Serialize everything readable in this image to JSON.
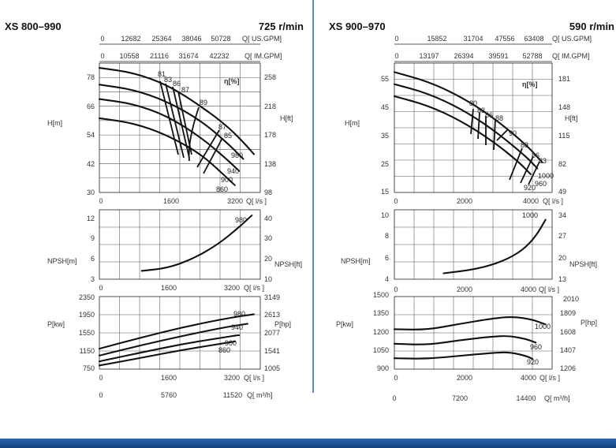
{
  "charts": [
    {
      "model": "XS 800–990",
      "speed": "725 r/min",
      "flow_unit_ls": "Q[ l/s ]",
      "flow_unit_usgpm": "Q[ US.GPM]",
      "flow_unit_imgpm": "Q[ IM.GPM]",
      "flow_unit_m3h": "Q[ m³/h]",
      "head_label_m": "H[m]",
      "head_label_ft": "H[ft]",
      "eff_label": "η[%]",
      "npsh_label_m": "NPSH[m]",
      "npsh_label_ft": "NPSH[ft]",
      "power_label_kw": "P[kw]",
      "power_label_hp": "P[hp]",
      "usgpm_ticks": [
        "0",
        "12682",
        "25364",
        "38046",
        "50728"
      ],
      "imgpm_ticks": [
        "0",
        "10558",
        "21116",
        "31674",
        "42232"
      ],
      "q_ticks": [
        "0",
        "1600",
        "3200"
      ],
      "m3h_ticks": [
        "0",
        "5760",
        "11520"
      ],
      "head_ticks_m": [
        "78",
        "66",
        "54",
        "42",
        "30"
      ],
      "head_ticks_ft": [
        "258",
        "218",
        "178",
        "138",
        "98"
      ],
      "npsh_ticks_m": [
        "12",
        "9",
        "6",
        "3"
      ],
      "npsh_ticks_ft": [
        "40",
        "30",
        "20",
        "10"
      ],
      "power_ticks_kw": [
        "2350",
        "1950",
        "1550",
        "1150",
        "750"
      ],
      "power_ticks_hp": [
        "3149",
        "2613",
        "2077",
        "1541",
        "1005"
      ],
      "eff_values": [
        "81",
        "83",
        "86",
        "87",
        "89",
        "87",
        "85"
      ],
      "head_curves": [
        "980",
        "940",
        "900",
        "860"
      ],
      "npsh_curves": [
        "980"
      ],
      "power_curves": [
        "980",
        "940",
        "900",
        "860"
      ]
    },
    {
      "model": "XS 900–970",
      "speed": "590 r/min",
      "flow_unit_ls": "Q[ l/s ]",
      "flow_unit_usgpm": "Q[ US.GPM]",
      "flow_unit_imgpm": "Q[ IM.GPM]",
      "flow_unit_m3h": "Q[ m³/h]",
      "head_label_m": "H[m]",
      "head_label_ft": "H[ft]",
      "eff_label": "η[%]",
      "npsh_label_m": "NPSH[m]",
      "npsh_label_ft": "NPSH[ft]",
      "power_label_kw": "P[kw]",
      "power_label_hp": "P[hp]",
      "usgpm_ticks": [
        "0",
        "15852",
        "31704",
        "47556",
        "63408"
      ],
      "imgpm_ticks": [
        "0",
        "13197",
        "26394",
        "39591",
        "52788"
      ],
      "q_ticks": [
        "0",
        "2000",
        "4000"
      ],
      "m3h_ticks": [
        "0",
        "7200",
        "14400"
      ],
      "head_ticks_m": [
        "55",
        "45",
        "35",
        "25",
        "15"
      ],
      "head_ticks_ft": [
        "181",
        "148",
        "115",
        "82",
        "49"
      ],
      "npsh_ticks_m": [
        "10",
        "8",
        "6",
        "4"
      ],
      "npsh_ticks_ft": [
        "34",
        "27",
        "20",
        "13"
      ],
      "power_ticks_kw": [
        "1500",
        "1350",
        "1200",
        "1050",
        "900"
      ],
      "power_ticks_hp": [
        "2010",
        "1809",
        "1608",
        "1407",
        "1206"
      ],
      "eff_values": [
        "80",
        "83",
        "86",
        "88",
        "90",
        "88",
        "86",
        "83"
      ],
      "head_curves": [
        "1000",
        "960",
        "920"
      ],
      "npsh_curves": [
        "1000"
      ],
      "power_curves": [
        "1000",
        "960",
        "920"
      ]
    }
  ],
  "chart_data": [
    {
      "type": "line",
      "title": "XS 800–990 — 725 r/min — Head",
      "xlabel": "Q [l/s]",
      "ylabel": "H [m]",
      "xlim": [
        0,
        3800
      ],
      "ylim": [
        30,
        84
      ],
      "series": [
        {
          "name": "980",
          "x": [
            0,
            800,
            1600,
            2400,
            3000,
            3400,
            3650
          ],
          "y": [
            82,
            80,
            75,
            66,
            58,
            51,
            46
          ]
        },
        {
          "name": "940",
          "x": [
            0,
            800,
            1600,
            2400,
            3000,
            3400
          ],
          "y": [
            75,
            73,
            68,
            60,
            51,
            44
          ]
        },
        {
          "name": "900",
          "x": [
            0,
            800,
            1600,
            2400,
            3000,
            3300
          ],
          "y": [
            69,
            67,
            62,
            53,
            44,
            39
          ]
        },
        {
          "name": "860",
          "x": [
            0,
            800,
            1600,
            2400,
            2900,
            3200
          ],
          "y": [
            61,
            59,
            54,
            46,
            38,
            33
          ]
        }
      ]
    },
    {
      "type": "line",
      "title": "XS 800–990 — NPSH",
      "xlabel": "Q [l/s]",
      "ylabel": "NPSH [m]",
      "xlim": [
        0,
        3800
      ],
      "ylim": [
        3,
        13
      ],
      "series": [
        {
          "name": "980",
          "x": [
            1000,
            1600,
            2200,
            2800,
            3300,
            3600
          ],
          "y": [
            4.2,
            4.6,
            5.9,
            8.0,
            10.5,
            12.2
          ]
        }
      ]
    },
    {
      "type": "line",
      "title": "XS 800–990 — Power",
      "xlabel": "Q [l/s]",
      "ylabel": "P [kW]",
      "xlim": [
        0,
        3800
      ],
      "ylim": [
        750,
        2350
      ],
      "series": [
        {
          "name": "980",
          "x": [
            0,
            1000,
            2000,
            3000,
            3650
          ],
          "y": [
            1200,
            1450,
            1680,
            1870,
            1960
          ]
        },
        {
          "name": "940",
          "x": [
            0,
            1000,
            2000,
            3000,
            3500
          ],
          "y": [
            1050,
            1280,
            1490,
            1680,
            1750
          ]
        },
        {
          "name": "900",
          "x": [
            0,
            1000,
            2000,
            3000,
            3300
          ],
          "y": [
            920,
            1120,
            1310,
            1460,
            1500
          ]
        },
        {
          "name": "860",
          "x": [
            0,
            1000,
            2000,
            3000,
            3200
          ],
          "y": [
            830,
            1000,
            1180,
            1330,
            1360
          ]
        }
      ]
    },
    {
      "type": "line",
      "title": "XS 900–970 — 590 r/min — Head",
      "xlabel": "Q [l/s]",
      "ylabel": "H [m]",
      "xlim": [
        0,
        4800
      ],
      "ylim": [
        15,
        58
      ],
      "series": [
        {
          "name": "1000",
          "x": [
            0,
            1000,
            2000,
            3000,
            4000,
            4500
          ],
          "y": [
            55,
            52,
            47,
            40,
            31,
            25
          ]
        },
        {
          "name": "960",
          "x": [
            0,
            1000,
            2000,
            3000,
            4000,
            4350
          ],
          "y": [
            51,
            48,
            43,
            36,
            27,
            23
          ]
        },
        {
          "name": "920",
          "x": [
            0,
            1000,
            2000,
            3000,
            3800,
            4150
          ],
          "y": [
            47,
            44,
            39,
            32,
            25,
            21
          ]
        }
      ]
    },
    {
      "type": "line",
      "title": "XS 900–970 — NPSH",
      "xlabel": "Q [l/s]",
      "ylabel": "NPSH [m]",
      "xlim": [
        0,
        4800
      ],
      "ylim": [
        4,
        11
      ],
      "series": [
        {
          "name": "1000",
          "x": [
            1500,
            2500,
            3300,
            3900,
            4300,
            4600
          ],
          "y": [
            4.6,
            5.0,
            5.8,
            6.9,
            8.3,
            10.0
          ]
        }
      ]
    },
    {
      "type": "line",
      "title": "XS 900–970 — Power",
      "xlabel": "Q [l/s]",
      "ylabel": "P [kW]",
      "xlim": [
        0,
        4800
      ],
      "ylim": [
        900,
        1500
      ],
      "series": [
        {
          "name": "1000",
          "x": [
            0,
            1000,
            2000,
            3000,
            3600,
            4200,
            4600
          ],
          "y": [
            1230,
            1225,
            1275,
            1320,
            1335,
            1310,
            1270
          ]
        },
        {
          "name": "960",
          "x": [
            0,
            1000,
            2000,
            3000,
            3500,
            4000,
            4300
          ],
          "y": [
            1110,
            1100,
            1140,
            1170,
            1175,
            1150,
            1120
          ]
        },
        {
          "name": "920",
          "x": [
            0,
            1000,
            2000,
            3000,
            3500,
            4000,
            4200
          ],
          "y": [
            990,
            985,
            1010,
            1035,
            1040,
            1010,
            985
          ]
        }
      ]
    }
  ]
}
